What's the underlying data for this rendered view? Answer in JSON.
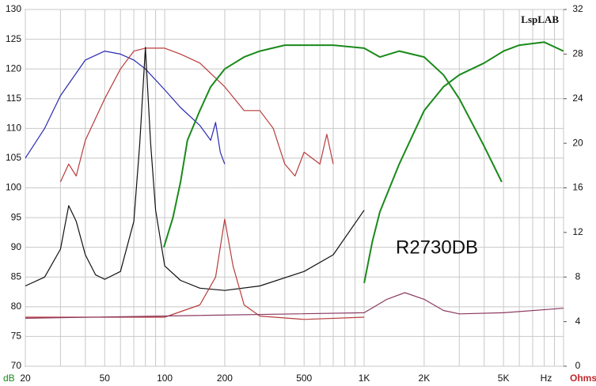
{
  "chart_data": {
    "type": "line",
    "title": "LspLAB",
    "annotation": "R2730DB",
    "x_label": "Hz",
    "y_label": "dB",
    "y2_label": "Ohms",
    "log_x": true,
    "grid": true,
    "xlim": [
      20,
      10000
    ],
    "xticks": [
      20,
      50,
      100,
      200,
      500,
      {
        "value": 1000,
        "label": "1K"
      },
      {
        "value": 2000,
        "label": "2K"
      },
      {
        "value": 5000,
        "label": "5K"
      }
    ],
    "xgrid": [
      30,
      40,
      60,
      70,
      80,
      90,
      300,
      400,
      600,
      700,
      800,
      900,
      3000,
      4000,
      6000,
      7000,
      8000,
      9000,
      10000
    ],
    "ylim": [
      70,
      130
    ],
    "yticks": [
      70,
      75,
      80,
      85,
      90,
      95,
      100,
      105,
      110,
      115,
      120,
      125,
      130
    ],
    "y2lim": [
      0,
      32
    ],
    "y2ticks": [
      0,
      4,
      8,
      12,
      16,
      20,
      24,
      28,
      32
    ],
    "series": [
      {
        "color": "#2a2ab4",
        "x": [
          20,
          25,
          30,
          40,
          50,
          60,
          70,
          80,
          100,
          120,
          150,
          170,
          180,
          190,
          200
        ],
        "values": [
          105,
          110,
          115.5,
          121.5,
          123,
          122.5,
          121.5,
          120,
          116.5,
          113.5,
          110.5,
          108,
          111,
          106,
          104
        ]
      },
      {
        "color": "#b83c3c",
        "x": [
          30,
          33,
          36,
          40,
          50,
          60,
          70,
          80,
          100,
          120,
          150,
          200,
          250,
          300,
          350,
          400,
          450,
          500,
          600,
          650,
          700
        ],
        "values": [
          101,
          104,
          102,
          108,
          115,
          120,
          123,
          123.5,
          123.5,
          122.5,
          121,
          117,
          113,
          113,
          110,
          104,
          102,
          106,
          104,
          109,
          104
        ]
      },
      {
        "color": "#1a8a1a",
        "x": [
          99,
          110,
          120,
          130,
          150,
          170,
          200,
          250,
          300,
          400,
          500,
          700,
          1000,
          1200,
          1500,
          2000,
          2500,
          3000,
          4000,
          4900
        ],
        "values": [
          90,
          95,
          101,
          108,
          113,
          117,
          120,
          122,
          123,
          124,
          124,
          124,
          123.5,
          122,
          123,
          122,
          119,
          115,
          107,
          101
        ]
      },
      {
        "color": "#1a8a1a",
        "x": [
          1000,
          1100,
          1200,
          1500,
          2000,
          2500,
          3000,
          4000,
          5000,
          6000,
          8000,
          10000
        ],
        "values": [
          84,
          91,
          96,
          104,
          113,
          117,
          119,
          121,
          123,
          124,
          124.5,
          123
        ],
        "axis": "y"
      },
      {
        "color": "#111111",
        "x": [
          20,
          25,
          30,
          33,
          36,
          40,
          45,
          50,
          60,
          70,
          75,
          80,
          85,
          90,
          100,
          120,
          150,
          200,
          300,
          500,
          700,
          1000
        ],
        "values": [
          7.2,
          8,
          10.5,
          14.4,
          13,
          10,
          8.2,
          7.8,
          8.5,
          13,
          20,
          28.6,
          20,
          14,
          9,
          7.7,
          7,
          6.8,
          7.2,
          8.5,
          10,
          14
        ],
        "axis": "y2"
      },
      {
        "color": "#b83c3c",
        "x": [
          20,
          100,
          150,
          180,
          200,
          220,
          250,
          300,
          500,
          1000
        ],
        "values": [
          4.4,
          4.4,
          5.5,
          8,
          13.2,
          9,
          5.5,
          4.5,
          4.2,
          4.4
        ],
        "axis": "y2"
      },
      {
        "color": "#8b3a62",
        "x": [
          20,
          1000,
          1300,
          1600,
          2000,
          2500,
          3000,
          5000,
          10000
        ],
        "values": [
          4.3,
          4.8,
          6,
          6.6,
          6,
          5,
          4.7,
          4.8,
          5.2
        ],
        "axis": "y2"
      }
    ]
  }
}
